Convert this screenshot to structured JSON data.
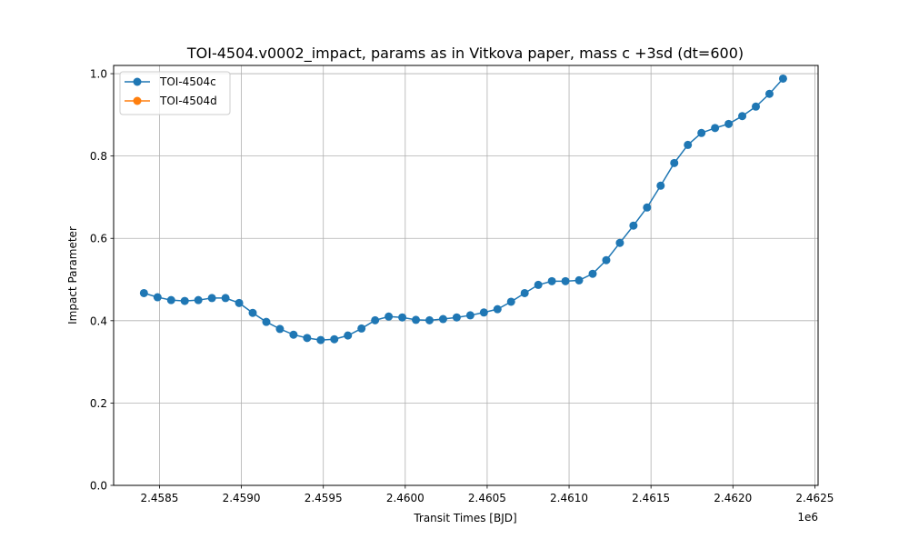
{
  "chart_data": {
    "type": "line",
    "title": "TOI-4504.v0002_impact, params as in Vitkova paper, mass c +3sd (dt=600)",
    "xlabel": "Transit Times [BJD]",
    "ylabel": "Impact Parameter",
    "x_offset_label": "1e6",
    "xlim": [
      2458220,
      2462520
    ],
    "ylim": [
      0.0,
      1.02
    ],
    "x_ticks": [
      2458500,
      2459000,
      2459500,
      2460000,
      2460500,
      2461000,
      2461500,
      2462000,
      2462500
    ],
    "x_tick_labels": [
      "2.4585",
      "2.4590",
      "2.4595",
      "2.4600",
      "2.4605",
      "2.4610",
      "2.4615",
      "2.4620",
      "2.4625"
    ],
    "y_ticks": [
      0.0,
      0.2,
      0.4,
      0.6,
      0.8,
      1.0
    ],
    "y_tick_labels": [
      "0.0",
      "0.2",
      "0.4",
      "0.6",
      "0.8",
      "1.0"
    ],
    "grid": true,
    "legend_position": "top-left",
    "series": [
      {
        "name": "TOI-4504c",
        "color": "#1f77b4",
        "marker": "circle",
        "x": [
          2458405,
          2458488,
          2458571,
          2458654,
          2458737,
          2458820,
          2458903,
          2458986,
          2459069,
          2459152,
          2459235,
          2459318,
          2459401,
          2459484,
          2459567,
          2459650,
          2459733,
          2459816,
          2459899,
          2459982,
          2460065,
          2460148,
          2460231,
          2460314,
          2460397,
          2460480,
          2460563,
          2460646,
          2460729,
          2460812,
          2460895,
          2460978,
          2461061,
          2461144,
          2461227,
          2461310,
          2461393,
          2461476,
          2461559,
          2461642,
          2461725,
          2461808,
          2461891,
          2461974,
          2462057,
          2462140,
          2462223,
          2462306
        ],
        "y": [
          0.467,
          0.457,
          0.45,
          0.448,
          0.45,
          0.455,
          0.455,
          0.443,
          0.419,
          0.397,
          0.38,
          0.366,
          0.358,
          0.353,
          0.355,
          0.364,
          0.381,
          0.401,
          0.41,
          0.408,
          0.402,
          0.401,
          0.404,
          0.408,
          0.413,
          0.42,
          0.428,
          0.446,
          0.467,
          0.487,
          0.496,
          0.496,
          0.498,
          0.514,
          0.547,
          0.589,
          0.631,
          0.675,
          0.728,
          0.783,
          0.827,
          0.856,
          0.868,
          0.878,
          0.897,
          0.92,
          0.951,
          0.988
        ]
      },
      {
        "name": "TOI-4504d",
        "color": "#ff7f0e",
        "marker": "circle",
        "x": [],
        "y": []
      }
    ]
  }
}
